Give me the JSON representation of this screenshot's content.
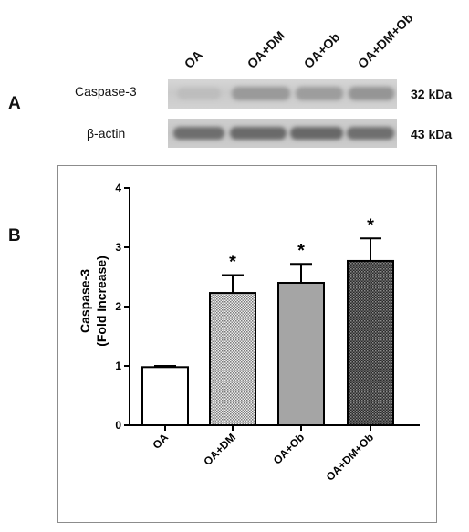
{
  "panel_a": {
    "label": "A",
    "lanes": [
      "OA",
      "OA+DM",
      "OA+Ob",
      "OA+DM+Ob"
    ],
    "blots": [
      {
        "protein": "Caspase-3",
        "size": "32 kDa"
      },
      {
        "protein": "β-actin",
        "size": "43 kDa"
      }
    ]
  },
  "panel_b": {
    "label": "B"
  },
  "chart_data": {
    "type": "bar",
    "categories": [
      "OA",
      "OA+DM",
      "OA+Ob",
      "OA+DM+Ob"
    ],
    "values": [
      0.98,
      2.23,
      2.4,
      2.77
    ],
    "errors": [
      0.02,
      0.3,
      0.32,
      0.38
    ],
    "significance": [
      "",
      "*",
      "*",
      "*"
    ],
    "fills": [
      "white",
      "light-dotted",
      "gray",
      "dark-dotted"
    ],
    "ylabel_line1": "Caspase-3",
    "ylabel_line2": "(Fold Increase)",
    "ylim": [
      0,
      4
    ],
    "yticks": [
      0,
      1,
      2,
      3,
      4
    ],
    "grid": false,
    "legend": false,
    "colors": {
      "light_bar": "#b4b4b4",
      "gray_bar": "#a5a5a5",
      "dark_bar": "#4a4a4a",
      "outline": "#000000"
    }
  }
}
